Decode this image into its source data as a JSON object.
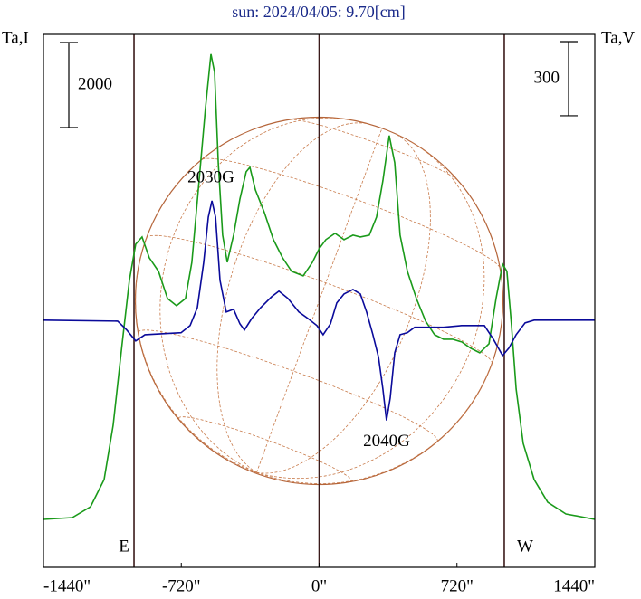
{
  "chart_data": {
    "type": "line",
    "title": "sun: 2024/04/05: 9.70[cm]",
    "y_label": "Ta,I",
    "y2_label": "Ta,V",
    "xlim": [
      -1440,
      1440
    ],
    "xticks": [
      {
        "value": -1440,
        "label": "-1440\""
      },
      {
        "value": -720,
        "label": "-720\""
      },
      {
        "value": 0,
        "label": "0\""
      },
      {
        "value": 720,
        "label": "720\""
      },
      {
        "value": 1440,
        "label": "1440\""
      }
    ],
    "ylim": [
      0,
      12530
    ],
    "y2lim": [
      -1000,
      1156
    ],
    "scale_bars": [
      {
        "label": "2000",
        "value": 2000
      },
      {
        "label": "300",
        "value": 300,
        "axis": "y2"
      }
    ],
    "vlines": [
      -967,
      0,
      967
    ],
    "limb_labels": [
      {
        "text": "E",
        "x": -967
      },
      {
        "text": "W",
        "x": 967
      }
    ],
    "annotations": [
      {
        "text": "2030G",
        "x": -565,
        "series": 0
      },
      {
        "text": "2040G",
        "x": 352,
        "series": 1
      }
    ],
    "series": [
      {
        "name": "I",
        "color": "#1a9a1a",
        "x": [
          -1440,
          -1289,
          -1194,
          -1123,
          -1076,
          -1029,
          -991,
          -958,
          -925,
          -887,
          -839,
          -792,
          -745,
          -698,
          -665,
          -627,
          -594,
          -565,
          -546,
          -527,
          -504,
          -480,
          -447,
          -414,
          -381,
          -362,
          -333,
          -286,
          -239,
          -191,
          -144,
          -83,
          -35,
          0,
          35,
          83,
          130,
          177,
          215,
          262,
          300,
          333,
          366,
          395,
          423,
          461,
          508,
          556,
          603,
          650,
          697,
          745,
          792,
          839,
          887,
          924,
          958,
          981,
          1005,
          1029,
          1066,
          1123,
          1194,
          1289,
          1440
        ],
        "values": [
          1128,
          1170,
          1426,
          2064,
          3341,
          5256,
          6746,
          7597,
          7767,
          7278,
          6959,
          6320,
          6150,
          6320,
          7171,
          9087,
          10789,
          12066,
          11640,
          9512,
          7810,
          7171,
          7810,
          8661,
          9299,
          9406,
          8874,
          8342,
          7703,
          7278,
          6959,
          6852,
          7171,
          7491,
          7703,
          7852,
          7703,
          7810,
          7767,
          7810,
          8235,
          9087,
          10151,
          9512,
          7810,
          6959,
          6320,
          5788,
          5469,
          5363,
          5363,
          5299,
          5150,
          5043,
          5256,
          6320,
          7129,
          6959,
          5682,
          4192,
          2915,
          2064,
          1532,
          1256,
          1128
        ]
      },
      {
        "name": "V",
        "color": "#0a0a9a",
        "axis": "y2",
        "x": [
          -1440,
          -1052,
          -1005,
          -958,
          -910,
          -721,
          -674,
          -636,
          -603,
          -579,
          -560,
          -541,
          -518,
          -485,
          -447,
          -414,
          -390,
          -352,
          -305,
          -248,
          -210,
          -163,
          -106,
          -59,
          -12,
          21,
          59,
          92,
          130,
          177,
          215,
          248,
          281,
          310,
          333,
          352,
          371,
          395,
          423,
          461,
          499,
          556,
          650,
          745,
          863,
          910,
          958,
          991,
          1029,
          1076,
          1123,
          1440
        ],
        "values": [
          0,
          -4,
          -40,
          -84,
          -59,
          -51,
          -22,
          51,
          234,
          417,
          483,
          417,
          161,
          33,
          44,
          -15,
          -40,
          7,
          51,
          95,
          117,
          88,
          33,
          7,
          -22,
          -59,
          -15,
          70,
          106,
          124,
          106,
          33,
          -59,
          -150,
          -278,
          -406,
          -315,
          -132,
          -59,
          -51,
          -29,
          -29,
          -29,
          -22,
          -22,
          -77,
          -143,
          -113,
          -59,
          -11,
          0,
          0
        ]
      }
    ]
  }
}
